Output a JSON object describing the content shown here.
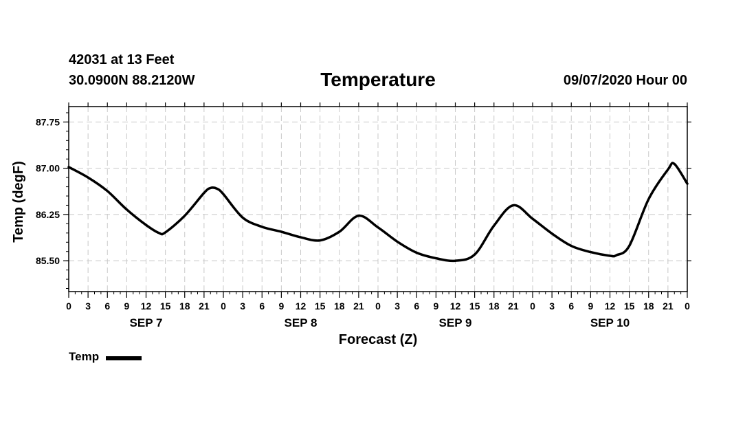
{
  "header": {
    "station": "42031 at 13 Feet",
    "coords": "30.0900N 88.2120W",
    "run_time": "09/07/2020 Hour 00"
  },
  "chart_data": {
    "type": "line",
    "title": "Temperature",
    "xlabel": "Forecast (Z)",
    "ylabel": "Temp (degF)",
    "x_unit": "forecast hours from 09/07/2020 00Z",
    "xlim": [
      0,
      96
    ],
    "ylim": [
      85.0,
      88.0
    ],
    "y_ticks": [
      85.5,
      86.25,
      87.0,
      87.75
    ],
    "y_tick_labels": [
      "85.50",
      "86.25",
      "87.00",
      "87.75"
    ],
    "x_tick_step": 3,
    "x_tick_labels": [
      "0",
      "3",
      "6",
      "9",
      "12",
      "15",
      "18",
      "21",
      "0",
      "3",
      "6",
      "9",
      "12",
      "15",
      "18",
      "21",
      "0",
      "3",
      "6",
      "9",
      "12",
      "15",
      "18",
      "21",
      "0",
      "3",
      "6",
      "9",
      "12",
      "15",
      "18",
      "21",
      "0"
    ],
    "day_labels": [
      {
        "label": "SEP 7",
        "hour": 12
      },
      {
        "label": "SEP 8",
        "hour": 36
      },
      {
        "label": "SEP 9",
        "hour": 60
      },
      {
        "label": "SEP 10",
        "hour": 84
      }
    ],
    "grid": true,
    "legend": "bottom-left",
    "series": [
      {
        "name": "Temp",
        "color": "#000000",
        "x": [
          0,
          3,
          6,
          9,
          12,
          14,
          15,
          18,
          21,
          22,
          23,
          24,
          27,
          30,
          33,
          36,
          39,
          42,
          45,
          48,
          51,
          54,
          57,
          60,
          63,
          66,
          69,
          72,
          75,
          78,
          81,
          84,
          85,
          87,
          90,
          93,
          94,
          96
        ],
        "y": [
          87.02,
          86.85,
          86.63,
          86.33,
          86.08,
          85.95,
          85.96,
          86.23,
          86.6,
          86.68,
          86.67,
          86.58,
          86.2,
          86.05,
          85.97,
          85.88,
          85.83,
          85.97,
          86.23,
          86.04,
          85.81,
          85.63,
          85.54,
          85.5,
          85.6,
          86.07,
          86.4,
          86.18,
          85.94,
          85.74,
          85.64,
          85.58,
          85.59,
          85.74,
          86.5,
          86.98,
          87.07,
          86.75
        ]
      }
    ]
  }
}
